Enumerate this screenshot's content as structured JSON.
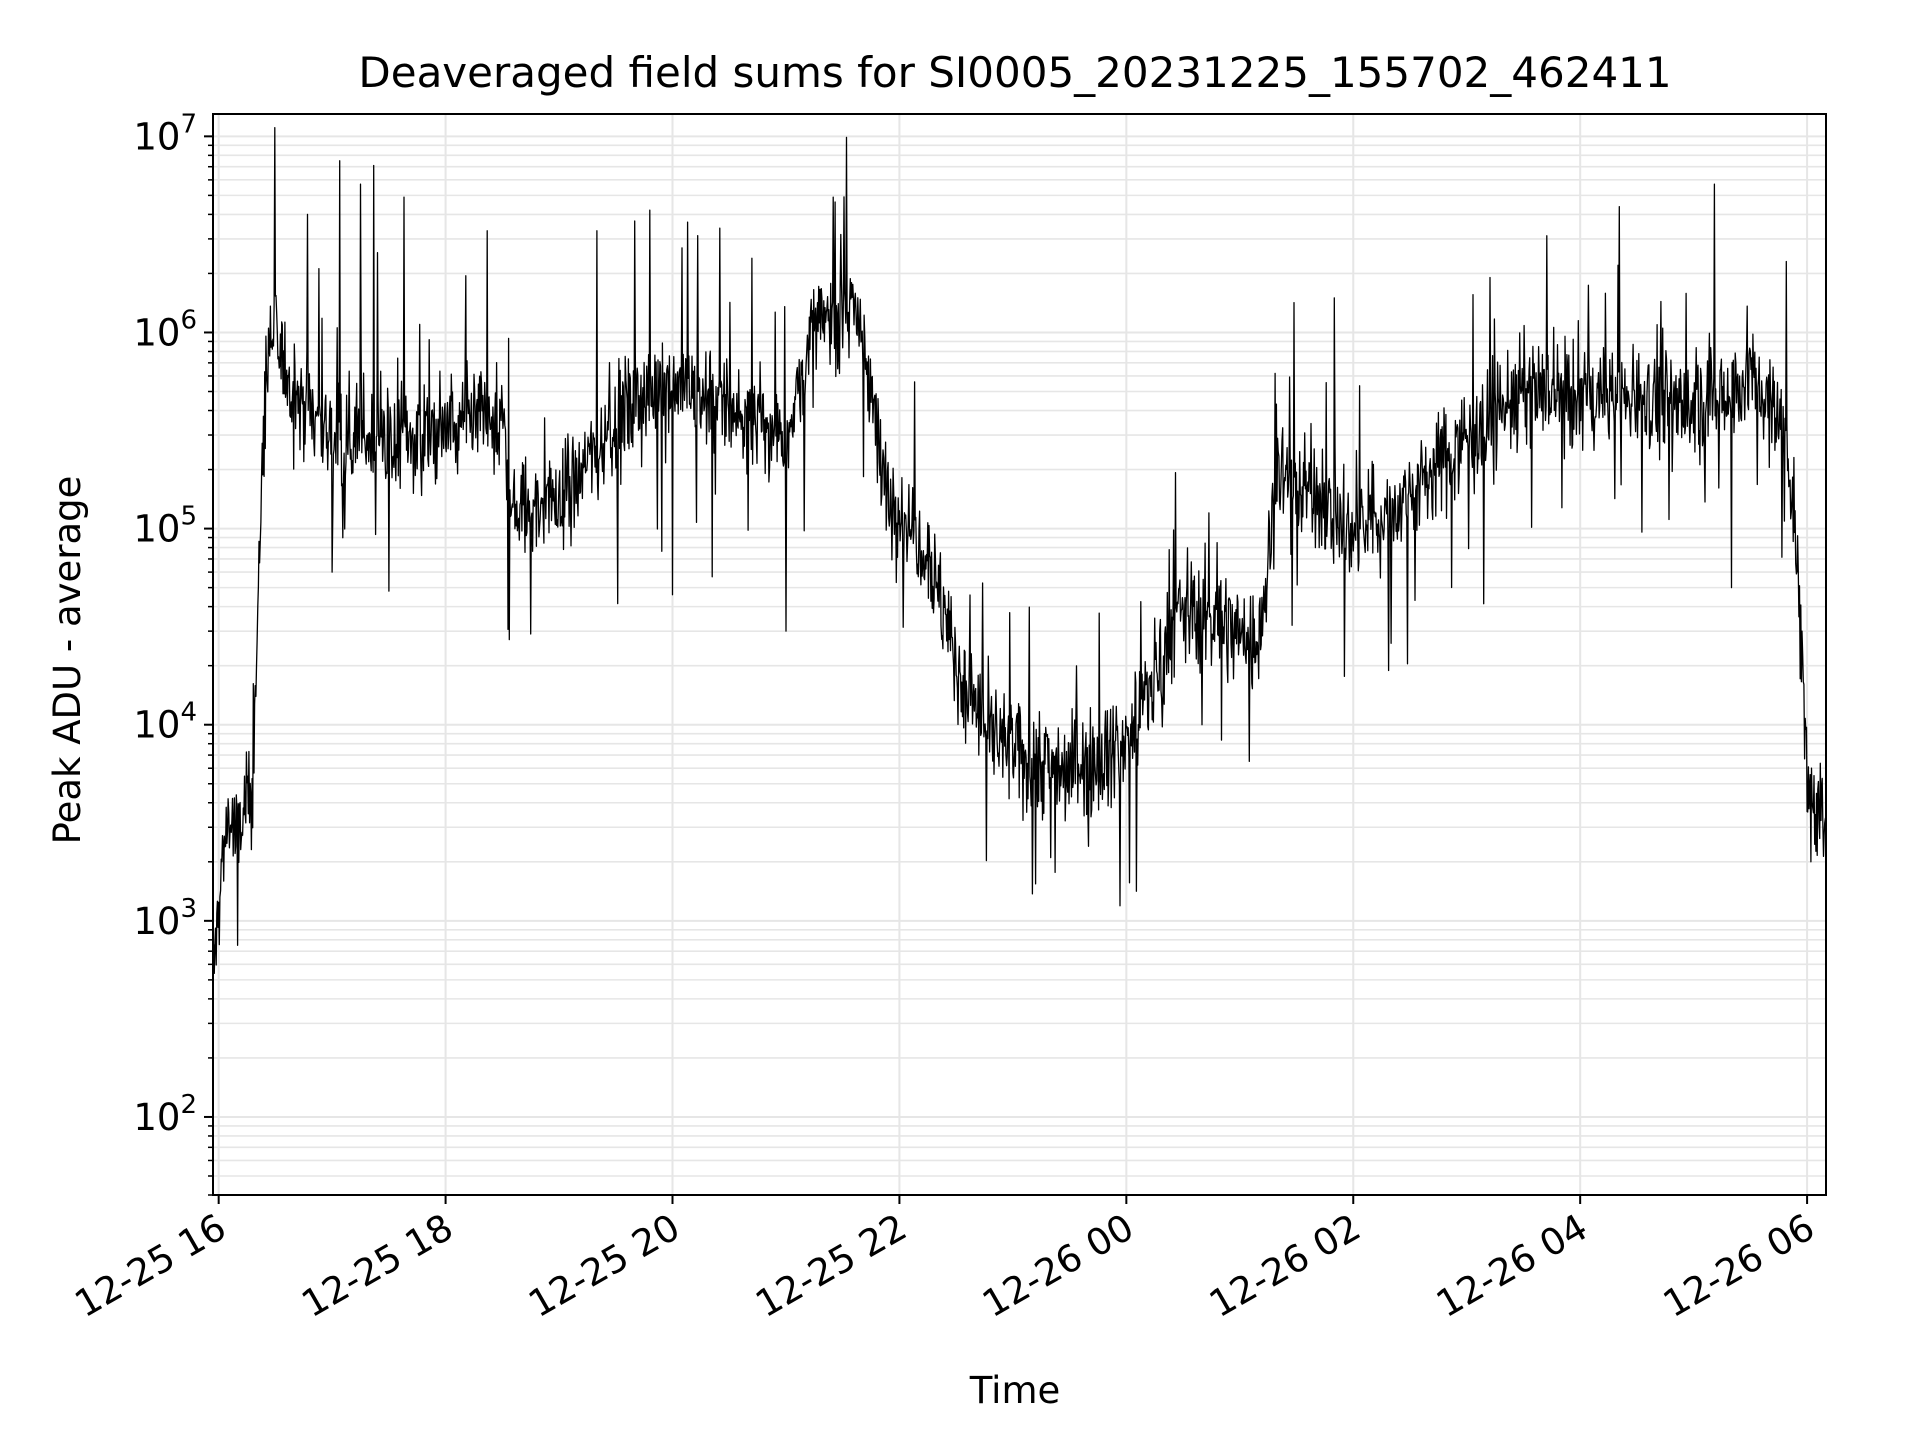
{
  "chart_data": {
    "type": "line",
    "title": "Deaveraged field sums for SI0005_20231225_155702_462411",
    "xlabel": "Time",
    "ylabel": "Peak ADU - average",
    "yscale": "log",
    "ylim": [
      40,
      13000000
    ],
    "xlim": [
      "2023-12-25 15:57",
      "2023-12-26 06:10"
    ],
    "grid": true,
    "line_color": "#000000",
    "x_ticks": [
      {
        "label": "12-25 16",
        "time": "2023-12-25 16:00"
      },
      {
        "label": "12-25 18",
        "time": "2023-12-25 18:00"
      },
      {
        "label": "12-25 20",
        "time": "2023-12-25 20:00"
      },
      {
        "label": "12-25 22",
        "time": "2023-12-25 22:00"
      },
      {
        "label": "12-26 00",
        "time": "2023-12-26 00:00"
      },
      {
        "label": "12-26 02",
        "time": "2023-12-26 02:00"
      },
      {
        "label": "12-26 04",
        "time": "2023-12-26 04:00"
      },
      {
        "label": "12-26 06",
        "time": "2023-12-26 06:00"
      }
    ],
    "y_ticks": [
      {
        "base": "10",
        "exp": "2",
        "value": 100
      },
      {
        "base": "10",
        "exp": "3",
        "value": 1000
      },
      {
        "base": "10",
        "exp": "4",
        "value": 10000
      },
      {
        "base": "10",
        "exp": "5",
        "value": 100000
      },
      {
        "base": "10",
        "exp": "6",
        "value": 1000000
      },
      {
        "base": "10",
        "exp": "7",
        "value": 10000000
      }
    ],
    "series": [
      {
        "points": [
          [
            "2023-12-25 15:57",
            500
          ],
          [
            "2023-12-25 16:02",
            2000
          ],
          [
            "2023-12-25 16:05",
            3500
          ],
          [
            "2023-12-25 16:10",
            2500
          ],
          [
            "2023-12-25 16:15",
            4000
          ],
          [
            "2023-12-25 16:18",
            5000
          ],
          [
            "2023-12-25 16:22",
            100000
          ],
          [
            "2023-12-25 16:25",
            600000
          ],
          [
            "2023-12-25 16:30",
            900000
          ],
          [
            "2023-12-25 16:40",
            500000
          ],
          [
            "2023-12-25 17:00",
            300000
          ],
          [
            "2023-12-25 17:30",
            280000
          ],
          [
            "2023-12-25 18:00",
            320000
          ],
          [
            "2023-12-25 18:30",
            350000
          ],
          [
            "2023-12-25 18:36",
            120000
          ],
          [
            "2023-12-25 19:00",
            140000
          ],
          [
            "2023-12-25 19:30",
            350000
          ],
          [
            "2023-12-25 20:00",
            600000
          ],
          [
            "2023-12-25 20:30",
            400000
          ],
          [
            "2023-12-25 21:00",
            300000
          ],
          [
            "2023-12-25 21:15",
            1000000
          ],
          [
            "2023-12-25 21:35",
            1500000
          ],
          [
            "2023-12-25 21:45",
            600000
          ],
          [
            "2023-12-25 21:50",
            180000
          ],
          [
            "2023-12-25 22:15",
            80000
          ],
          [
            "2023-12-25 22:30",
            20000
          ],
          [
            "2023-12-25 22:45",
            10000
          ],
          [
            "2023-12-25 23:00",
            7000
          ],
          [
            "2023-12-25 23:30",
            6000
          ],
          [
            "2023-12-26 00:00",
            8000
          ],
          [
            "2023-12-26 00:30",
            40000
          ],
          [
            "2023-12-26 01:00",
            30000
          ],
          [
            "2023-12-26 01:10",
            25000
          ],
          [
            "2023-12-26 01:20",
            200000
          ],
          [
            "2023-12-26 01:40",
            150000
          ],
          [
            "2023-12-26 02:00",
            90000
          ],
          [
            "2023-12-26 02:30",
            150000
          ],
          [
            "2023-12-26 03:00",
            300000
          ],
          [
            "2023-12-26 03:30",
            500000
          ],
          [
            "2023-12-26 04:00",
            450000
          ],
          [
            "2023-12-26 04:30",
            500000
          ],
          [
            "2023-12-26 05:00",
            400000
          ],
          [
            "2023-12-26 05:30",
            600000
          ],
          [
            "2023-12-26 05:50",
            300000
          ],
          [
            "2023-12-26 05:58",
            20000
          ],
          [
            "2023-12-26 06:00",
            5000
          ],
          [
            "2023-12-26 06:05",
            4000
          ],
          [
            "2023-12-26 06:10",
            3000
          ]
        ],
        "spikes": [
          [
            "2023-12-25 16:47",
            4000000
          ],
          [
            "2023-12-25 17:04",
            7500000
          ],
          [
            "2023-12-25 17:15",
            5700000
          ],
          [
            "2023-12-25 17:22",
            7100000
          ],
          [
            "2023-12-25 17:38",
            4900000
          ],
          [
            "2023-12-25 18:22",
            3300000
          ],
          [
            "2023-12-25 19:20",
            3300000
          ],
          [
            "2023-12-25 19:40",
            3700000
          ],
          [
            "2023-12-25 19:48",
            4200000
          ],
          [
            "2023-12-25 20:05",
            2700000
          ],
          [
            "2023-12-25 20:25",
            3400000
          ],
          [
            "2023-12-25 21:25",
            4900000
          ],
          [
            "2023-12-26 01:50",
            1500000
          ],
          [
            "2023-12-26 04:20",
            2200000
          ],
          [
            "2023-12-26 05:11",
            5700000
          ],
          [
            "2023-12-26 05:49",
            2300000
          ]
        ],
        "dips": [
          [
            "2023-12-25 16:10",
            750
          ],
          [
            "2023-12-25 17:00",
            60000
          ],
          [
            "2023-12-25 17:30",
            48000
          ],
          [
            "2023-12-25 18:45",
            29000
          ],
          [
            "2023-12-25 20:00",
            46000
          ],
          [
            "2023-12-25 21:00",
            30000
          ],
          [
            "2023-12-25 23:20",
            2100
          ],
          [
            "2023-12-25 23:40",
            2400
          ],
          [
            "2023-12-26 00:40",
            10000
          ],
          [
            "2023-12-26 01:05",
            6500
          ],
          [
            "2023-12-26 02:20",
            26000
          ],
          [
            "2023-12-26 05:20",
            50000
          ],
          [
            "2023-12-26 06:02",
            2000
          ]
        ]
      }
    ]
  }
}
